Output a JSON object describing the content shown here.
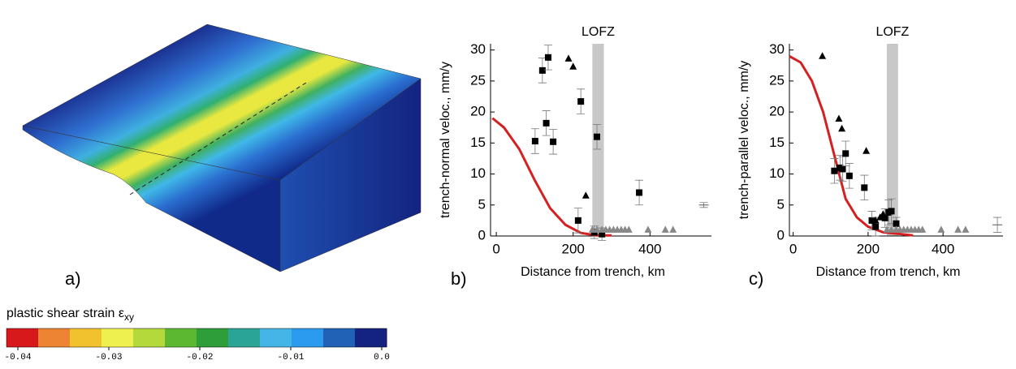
{
  "figure_a": {
    "panel_label": "a)",
    "colorbar": {
      "title": "plastic shear strain ε",
      "title_subscript": "xy",
      "lim": [
        -0.04,
        0
      ],
      "ticks": [
        -0.04,
        -0.03,
        -0.02,
        -0.01,
        {
          "value": 0,
          "label": "0.0"
        }
      ],
      "colors": [
        "#d7191c",
        "#ec8431",
        "#f2c12e",
        "#eef050",
        "#b4d93a",
        "#5cb830",
        "#2e9e3a",
        "#2aa595",
        "#45b4e6",
        "#2a9bef",
        "#2162b6",
        "#14237f"
      ]
    }
  },
  "chart_data": [
    {
      "type": "scatter",
      "panel_label": "b)",
      "ylabel": "trench-normal veloc., mm/y",
      "xlabel": "Distance from trench, km",
      "annotation": "LOFZ",
      "band": [
        250,
        280
      ],
      "band_color": "#c8c8c8",
      "xlim": [
        -15,
        560
      ],
      "ylim": [
        0,
        31
      ],
      "xticks": [
        0,
        200,
        400
      ],
      "yticks": [
        0,
        5,
        10,
        15,
        20,
        25,
        30
      ],
      "series": [
        {
          "kind": "line",
          "color": "#d42020",
          "x": [
            -10,
            20,
            60,
            100,
            140,
            180,
            220,
            260,
            300
          ],
          "values": [
            19,
            17.5,
            14,
            9,
            4.5,
            1.8,
            0.5,
            0.1,
            0.1
          ]
        },
        {
          "kind": "scatter",
          "marker": "square",
          "color": "#000000",
          "x": [
            101,
            120,
            130,
            135,
            148,
            213,
            220,
            262,
            372,
            255,
            275
          ],
          "values": [
            15.3,
            26.7,
            18.2,
            28.8,
            15.2,
            2.5,
            21.7,
            16,
            7,
            0.6,
            0.3
          ],
          "errors": [
            2,
            2,
            2,
            2,
            2,
            2,
            2,
            2,
            2,
            1,
            1
          ]
        },
        {
          "kind": "scatter",
          "marker": "triangle",
          "color": "#000000",
          "x": [
            188,
            200,
            233
          ],
          "values": [
            28.6,
            27.3,
            6.5
          ]
        },
        {
          "kind": "scatter",
          "marker": "triangle",
          "color": "#888888",
          "x": [
            250,
            262,
            275,
            285,
            295,
            305,
            315,
            325,
            335,
            345,
            395,
            440,
            460
          ],
          "values": [
            1,
            1,
            1,
            1,
            1,
            1,
            1,
            1,
            1,
            1,
            1,
            1,
            1
          ]
        },
        {
          "kind": "scatter",
          "marker": "plus",
          "color": "#555555",
          "x": [
            540
          ],
          "values": [
            5
          ],
          "errors": [
            0.4
          ]
        }
      ]
    },
    {
      "type": "scatter",
      "panel_label": "c)",
      "ylabel": "trench-parallel veloc., mm/y",
      "xlabel": "Distance from trench, km",
      "annotation": "LOFZ",
      "band": [
        250,
        280
      ],
      "band_color": "#c8c8c8",
      "xlim": [
        -10,
        560
      ],
      "ylim": [
        0,
        31
      ],
      "xticks": [
        0,
        200,
        400
      ],
      "yticks": [
        0,
        5,
        10,
        15,
        20,
        25,
        30
      ],
      "series": [
        {
          "kind": "line",
          "color": "#d42020",
          "x": [
            -10,
            20,
            50,
            80,
            110,
            140,
            170,
            200,
            240,
            290,
            320
          ],
          "values": [
            29,
            28,
            25,
            20,
            13,
            6,
            3,
            1.5,
            0.6,
            0.3,
            0.1
          ]
        },
        {
          "kind": "scatter",
          "marker": "square",
          "color": "#000000",
          "x": [
            110,
            125,
            132,
            140,
            150,
            190,
            210,
            220,
            245,
            255,
            262,
            275
          ],
          "values": [
            10.5,
            11,
            10.8,
            13.3,
            9.7,
            7.8,
            2.5,
            1.5,
            2.9,
            3.8,
            4,
            2
          ],
          "errors": [
            2,
            2,
            2,
            2,
            2,
            2,
            1.5,
            1.5,
            1.5,
            2,
            2,
            1
          ]
        },
        {
          "kind": "scatter",
          "marker": "triangle",
          "color": "#000000",
          "x": [
            78,
            122,
            130,
            195,
            220,
            232,
            240
          ],
          "values": [
            29,
            18.9,
            17.3,
            13.7,
            2.5,
            3,
            3.5
          ]
        },
        {
          "kind": "scatter",
          "marker": "triangle",
          "color": "#888888",
          "x": [
            250,
            262,
            275,
            285,
            295,
            305,
            315,
            325,
            335,
            345,
            395,
            440,
            460
          ],
          "values": [
            1,
            1,
            1,
            1,
            1,
            1,
            1,
            1,
            1,
            1,
            1,
            1,
            1
          ]
        },
        {
          "kind": "scatter",
          "marker": "plus",
          "color": "#555555",
          "x": [
            545
          ],
          "values": [
            1.8
          ],
          "errors": [
            1.2
          ]
        }
      ]
    }
  ]
}
